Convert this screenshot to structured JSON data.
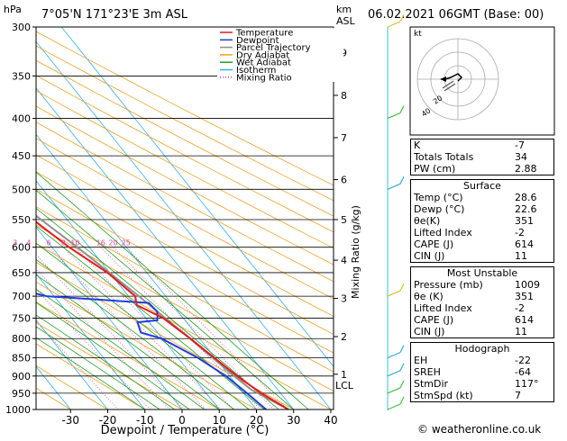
{
  "header": {
    "location": "7°05'N  171°23'E  3m  ASL",
    "run": "06.02.2021  06GMT  (Base: 00)"
  },
  "labels": {
    "hpa": "hPa",
    "km": "km",
    "asl": "ASL",
    "xaxis": "Dewpoint / Temperature (°C)",
    "mixing_axis": "Mixing Ratio (g/kg)",
    "lcl": "LCL",
    "credit": "© weatheronline.co.uk",
    "kt": "kt"
  },
  "legend": [
    {
      "name": "Temperature",
      "color": "#e41a1c"
    },
    {
      "name": "Dewpoint",
      "color": "#1f3fe0"
    },
    {
      "name": "Parcel Trajectory",
      "color": "#909090"
    },
    {
      "name": "Dry Adiabat",
      "color": "#f0a020"
    },
    {
      "name": "Wet Adiabat",
      "color": "#20a020"
    },
    {
      "name": "Isotherm",
      "color": "#30b0f0"
    },
    {
      "name": "Mixing Ratio",
      "color": "#e0409a"
    }
  ],
  "chart_data": {
    "type": "skew-t",
    "pressure_levels": [
      300,
      350,
      400,
      450,
      500,
      550,
      600,
      650,
      700,
      750,
      800,
      850,
      900,
      950,
      1000
    ],
    "x_ticks": [
      -30,
      -20,
      -10,
      0,
      10,
      20,
      30,
      40
    ],
    "xlim": [
      -40,
      40
    ],
    "km_ticks": [
      {
        "km": 1,
        "p": 895
      },
      {
        "km": 2,
        "p": 795
      },
      {
        "km": 3,
        "p": 705
      },
      {
        "km": 4,
        "p": 625
      },
      {
        "km": 5,
        "p": 550
      },
      {
        "km": 6,
        "p": 485
      },
      {
        "km": 7,
        "p": 425
      },
      {
        "km": 8,
        "p": 372
      },
      {
        "km": 9,
        "p": 325
      }
    ],
    "mixing_ratios": [
      1,
      2,
      3,
      4,
      6,
      8,
      10,
      16,
      20,
      25
    ],
    "temperature": [
      {
        "p": 1000,
        "t": 28.6
      },
      {
        "p": 950,
        "t": 24.8
      },
      {
        "p": 900,
        "t": 22.0
      },
      {
        "p": 850,
        "t": 19.8
      },
      {
        "p": 800,
        "t": 17.5
      },
      {
        "p": 750,
        "t": 14.6
      },
      {
        "p": 720,
        "t": 10.3
      },
      {
        "p": 700,
        "t": 11.8
      },
      {
        "p": 650,
        "t": 9.4
      },
      {
        "p": 600,
        "t": 4.6
      },
      {
        "p": 550,
        "t": 0.8
      },
      {
        "p": 500,
        "t": -3.6
      },
      {
        "p": 450,
        "t": -9.0
      },
      {
        "p": 400,
        "t": -15.2
      },
      {
        "p": 350,
        "t": -22.6
      },
      {
        "p": 300,
        "t": -30.2
      }
    ],
    "dewpoint": [
      {
        "p": 1000,
        "t": 22.6
      },
      {
        "p": 950,
        "t": 21.0
      },
      {
        "p": 900,
        "t": 19.0
      },
      {
        "p": 850,
        "t": 15.4
      },
      {
        "p": 800,
        "t": 9.8
      },
      {
        "p": 785,
        "t": 5.5
      },
      {
        "p": 760,
        "t": 6.8
      },
      {
        "p": 755,
        "t": 12.6
      },
      {
        "p": 735,
        "t": 14.4
      },
      {
        "p": 715,
        "t": 14.0
      },
      {
        "p": 700,
        "t": -12.0
      },
      {
        "p": 650,
        "t": -33.0
      },
      {
        "p": 600,
        "t": -37.0
      },
      {
        "p": 550,
        "t": -42.0
      },
      {
        "p": 500,
        "t": -47.0
      },
      {
        "p": 450,
        "t": -52.0
      },
      {
        "p": 400,
        "t": -60.0
      },
      {
        "p": 350,
        "t": -67.0
      },
      {
        "p": 335,
        "t": -72.0
      },
      {
        "p": 325,
        "t": -48.0
      },
      {
        "p": 305,
        "t": -42.0
      },
      {
        "p": 300,
        "t": -43.0
      }
    ],
    "parcel": [
      {
        "p": 1000,
        "t": 28.6
      },
      {
        "p": 940,
        "t": 22.9
      },
      {
        "p": 900,
        "t": 21.2
      },
      {
        "p": 800,
        "t": 17.4
      },
      {
        "p": 700,
        "t": 12.8
      },
      {
        "p": 600,
        "t": 6.8
      },
      {
        "p": 500,
        "t": -1.2
      },
      {
        "p": 400,
        "t": -12.0
      },
      {
        "p": 350,
        "t": -19.0
      }
    ],
    "wind_levels": [
      1000,
      950,
      900,
      850,
      700,
      500,
      400,
      300
    ]
  },
  "indices": {
    "rows": [
      {
        "label": "K",
        "value": "-7"
      },
      {
        "label": "Totals Totals",
        "value": "34"
      },
      {
        "label": "PW (cm)",
        "value": "2.88"
      }
    ]
  },
  "surface": {
    "title": "Surface",
    "rows": [
      {
        "label": "Temp (°C)",
        "value": "28.6"
      },
      {
        "label": "Dewp (°C)",
        "value": "22.6"
      },
      {
        "label": "θe(K)",
        "value": "351"
      },
      {
        "label": "Lifted Index",
        "value": "-2"
      },
      {
        "label": "CAPE (J)",
        "value": "614"
      },
      {
        "label": "CIN (J)",
        "value": "11"
      }
    ]
  },
  "unstable": {
    "title": "Most Unstable",
    "rows": [
      {
        "label": "Pressure (mb)",
        "value": "1009"
      },
      {
        "label": "θe (K)",
        "value": "351"
      },
      {
        "label": "Lifted Index",
        "value": "-2"
      },
      {
        "label": "CAPE (J)",
        "value": "614"
      },
      {
        "label": "CIN (J)",
        "value": "11"
      }
    ]
  },
  "hodograph": {
    "title": "Hodograph",
    "rings": [
      "20",
      "40"
    ],
    "rows": [
      {
        "label": "EH",
        "value": "-22"
      },
      {
        "label": "SREH",
        "value": "-64"
      },
      {
        "label": "StmDir",
        "value": "117°"
      },
      {
        "label": "StmSpd (kt)",
        "value": "7"
      }
    ]
  }
}
